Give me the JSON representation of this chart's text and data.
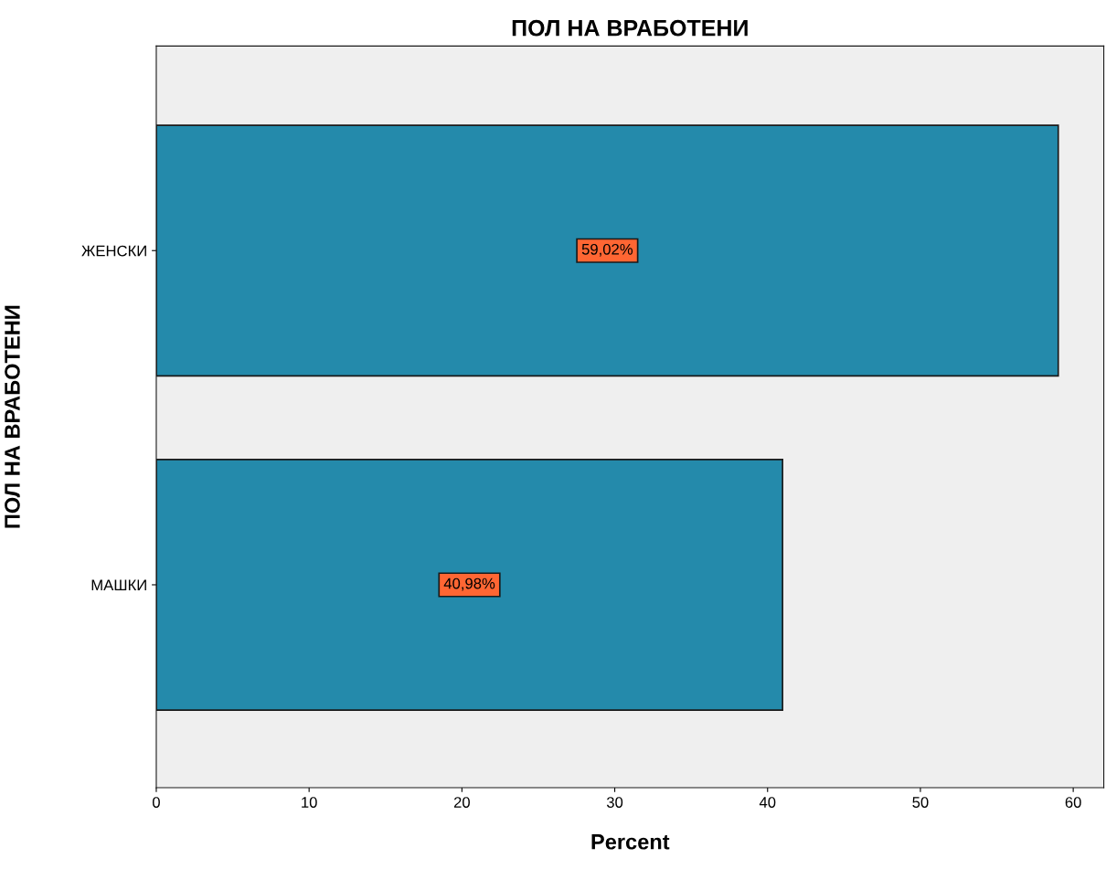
{
  "chart_data": {
    "type": "bar",
    "orientation": "horizontal",
    "title": "ПОЛ НА ВРАБОТЕНИ",
    "ylabel": "ПОЛ НА ВРАБОТЕНИ",
    "xlabel": "Percent",
    "categories": [
      "ЖЕНСКИ",
      "МАШКИ"
    ],
    "values": [
      59.02,
      40.98
    ],
    "value_labels": [
      "59,02%",
      "40,98%"
    ],
    "color": "#248aab",
    "xlim": [
      0,
      62
    ],
    "xticks": [
      0,
      10,
      20,
      30,
      40,
      50,
      60
    ],
    "grid": false,
    "legend": false
  }
}
